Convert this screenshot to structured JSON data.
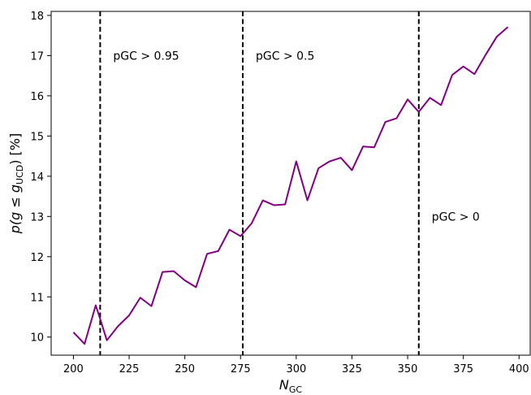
{
  "chart_data": {
    "type": "line",
    "title": "",
    "xlabel_main": "N",
    "xlabel_sub": "GC",
    "ylabel_pre": "p(g ≤ g",
    "ylabel_sub": "UCD",
    "ylabel_post": ") [%]",
    "xlim": [
      190,
      405
    ],
    "ylim": [
      9.55,
      18.1
    ],
    "xticks": [
      200,
      225,
      250,
      275,
      300,
      325,
      350,
      375,
      400
    ],
    "yticks": [
      10,
      11,
      12,
      13,
      14,
      15,
      16,
      17,
      18
    ],
    "grid": false,
    "series": [
      {
        "color": "#800080",
        "x": [
          200,
          205,
          210,
          212,
          215,
          220,
          225,
          230,
          235,
          240,
          245,
          250,
          255,
          260,
          265,
          270,
          275,
          280,
          285,
          290,
          295,
          300,
          305,
          310,
          315,
          320,
          325,
          330,
          335,
          340,
          345,
          350,
          355,
          360,
          365,
          370,
          375,
          380,
          385,
          390,
          395
        ],
        "y": [
          10.12,
          9.83,
          10.79,
          10.45,
          9.92,
          10.27,
          10.54,
          10.98,
          10.77,
          11.62,
          11.64,
          11.41,
          11.24,
          12.07,
          12.14,
          12.67,
          12.51,
          12.83,
          13.4,
          13.28,
          13.3,
          14.37,
          13.4,
          14.2,
          14.37,
          14.46,
          14.15,
          14.74,
          14.72,
          15.35,
          15.44,
          15.91,
          15.6,
          15.95,
          15.77,
          16.52,
          16.73,
          16.54,
          17.02,
          17.47,
          17.71
        ]
      }
    ],
    "vlines": [
      {
        "x": 212,
        "label": "pGC > 0.95",
        "label_y": 17.0
      },
      {
        "x": 276,
        "label": "pGC > 0.5",
        "label_y": 17.0
      },
      {
        "x": 355,
        "label": "pGC > 0",
        "label_y": 13.0
      }
    ]
  }
}
